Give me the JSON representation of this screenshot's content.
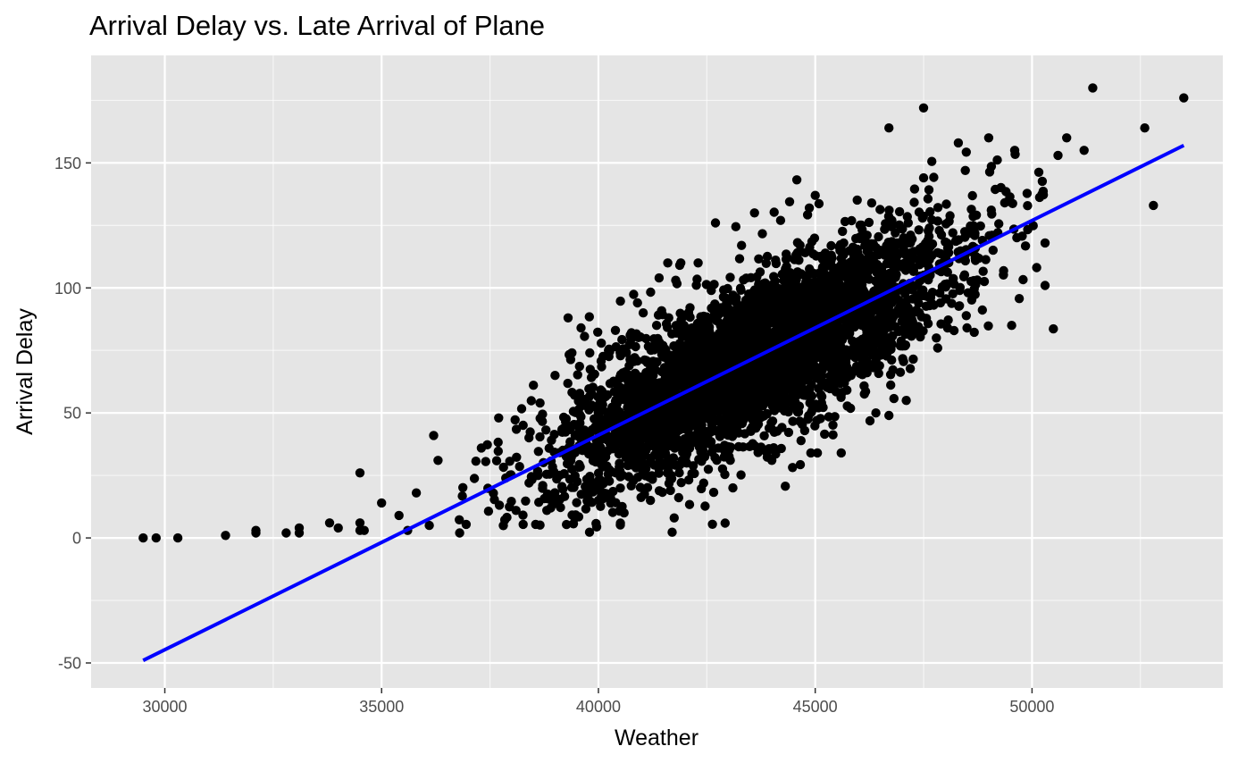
{
  "chart_data": {
    "type": "scatter",
    "title": "Arrival Delay vs. Late Arrival of Plane",
    "xlabel": "Weather",
    "ylabel": "Arrival Delay",
    "xlim": [
      28300,
      54400
    ],
    "ylim": [
      -60,
      193
    ],
    "x_ticks": [
      30000,
      35000,
      40000,
      45000,
      50000
    ],
    "y_ticks": [
      -50,
      0,
      50,
      100,
      150
    ],
    "x_tick_labels": [
      "30000",
      "35000",
      "40000",
      "45000",
      "50000"
    ],
    "y_tick_labels": [
      "-50",
      "0",
      "50",
      "100",
      "150"
    ],
    "grid": true,
    "legend": "none",
    "colors": {
      "panel": "#e5e5e5",
      "grid": "#ffffff",
      "points": "#000000",
      "fit_line": "#0000ff",
      "tick_text": "#4d4d4d"
    },
    "fit_line": {
      "x": [
        29500,
        53500
      ],
      "y": [
        -49,
        157
      ]
    },
    "cloud": {
      "count": 4000,
      "x_mean": 43600,
      "x_sd": 2300,
      "y_slope": 0.00858,
      "y_intercept": -302,
      "y_resid_sd": 16
    },
    "points": [
      [
        29500,
        0
      ],
      [
        29800,
        0
      ],
      [
        30300,
        0
      ],
      [
        31400,
        1
      ],
      [
        32100,
        2
      ],
      [
        32100,
        3
      ],
      [
        32800,
        2
      ],
      [
        33100,
        4
      ],
      [
        33100,
        2
      ],
      [
        33800,
        6
      ],
      [
        34000,
        4
      ],
      [
        34500,
        26
      ],
      [
        34500,
        3
      ],
      [
        34500,
        6
      ],
      [
        34600,
        3
      ],
      [
        35000,
        14
      ],
      [
        35400,
        9
      ],
      [
        35600,
        3
      ],
      [
        35800,
        18
      ],
      [
        36100,
        5
      ],
      [
        36200,
        41
      ],
      [
        36300,
        31
      ],
      [
        36800,
        2
      ],
      [
        37300,
        36
      ],
      [
        37700,
        48
      ],
      [
        38100,
        11
      ],
      [
        38400,
        22
      ],
      [
        38900,
        12
      ],
      [
        39000,
        65
      ],
      [
        39300,
        88
      ],
      [
        39600,
        84
      ],
      [
        39800,
        74
      ],
      [
        40000,
        15
      ],
      [
        40400,
        26
      ],
      [
        40900,
        94
      ],
      [
        41200,
        15
      ],
      [
        41400,
        104
      ],
      [
        41600,
        110
      ],
      [
        41900,
        110
      ],
      [
        42300,
        110
      ],
      [
        42700,
        126
      ],
      [
        43100,
        20
      ],
      [
        43300,
        117
      ],
      [
        43600,
        130
      ],
      [
        44000,
        31
      ],
      [
        44200,
        127
      ],
      [
        44900,
        34
      ],
      [
        45000,
        137
      ],
      [
        45600,
        34
      ],
      [
        46400,
        50
      ],
      [
        46700,
        164
      ],
      [
        46700,
        49
      ],
      [
        47100,
        55
      ],
      [
        47500,
        172
      ],
      [
        47500,
        144
      ],
      [
        48300,
        158
      ],
      [
        48500,
        84
      ],
      [
        49000,
        160
      ],
      [
        49600,
        155
      ],
      [
        50300,
        118
      ],
      [
        50300,
        101
      ],
      [
        50600,
        153
      ],
      [
        50800,
        160
      ],
      [
        51200,
        155
      ],
      [
        51400,
        180
      ],
      [
        52600,
        164
      ],
      [
        52800,
        133
      ],
      [
        53500,
        176
      ]
    ]
  }
}
